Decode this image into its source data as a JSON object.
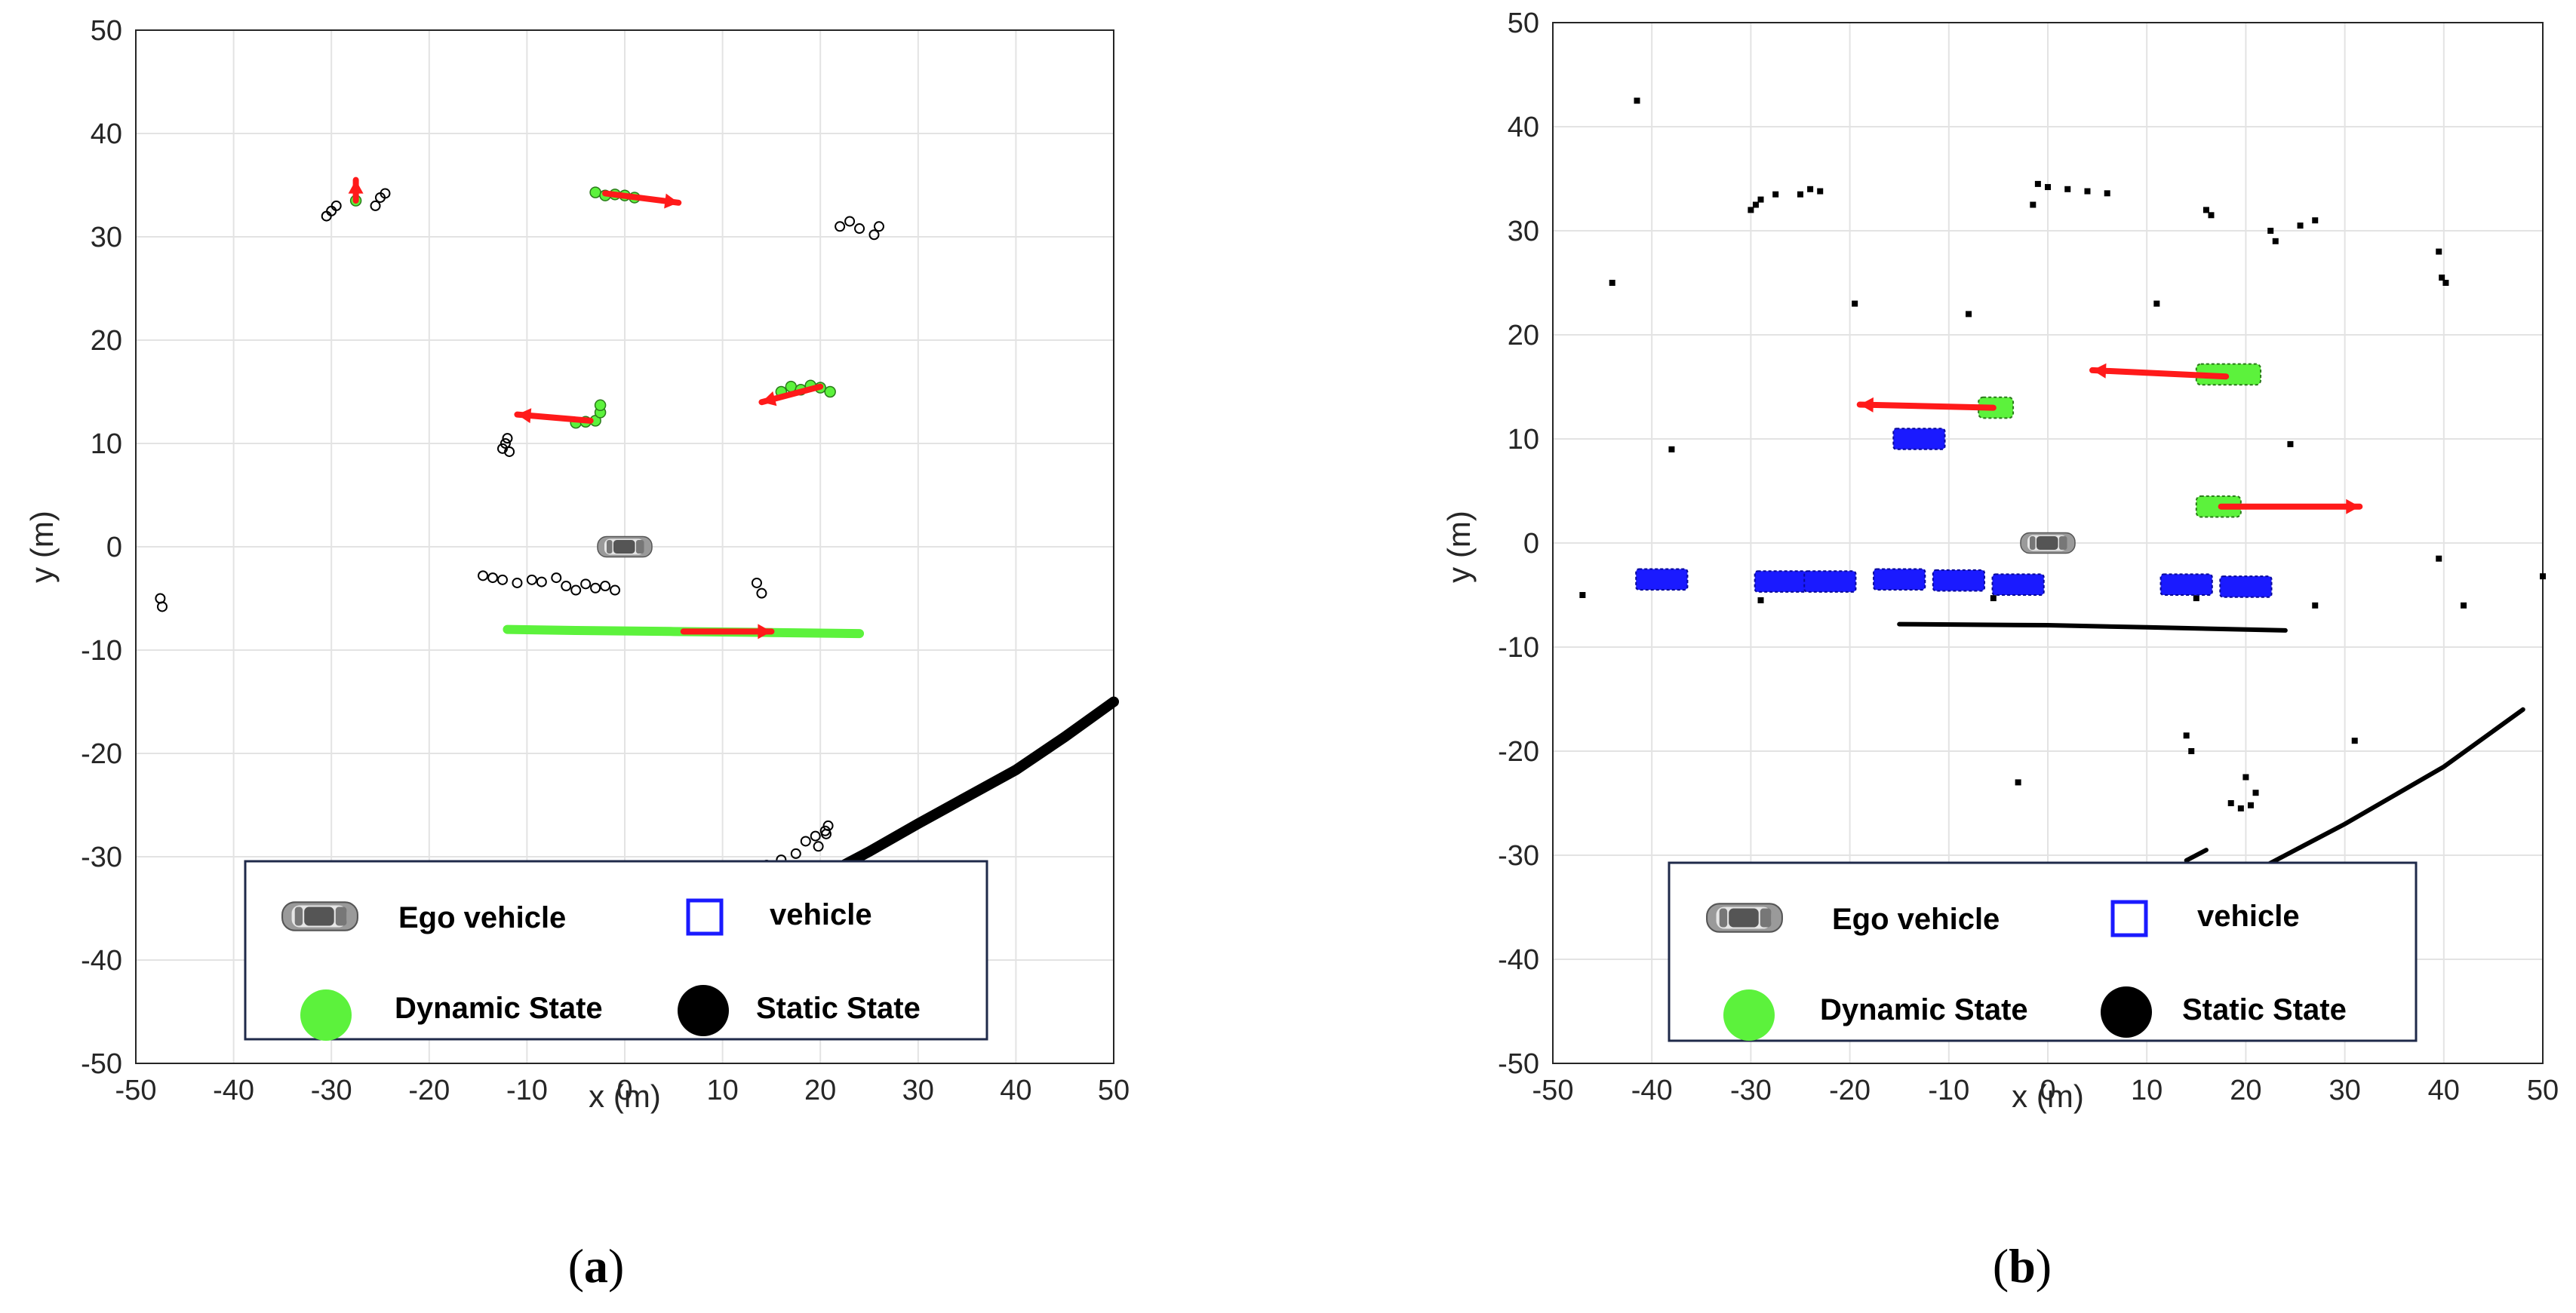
{
  "chart_data": [
    {
      "type": "scatter",
      "panel_label": "a",
      "xlabel": "x (m)",
      "ylabel": "y (m)",
      "xlim": [
        -50,
        50
      ],
      "ylim": [
        -50,
        50
      ],
      "xticks": [
        -50,
        -40,
        -30,
        -20,
        -10,
        0,
        10,
        20,
        30,
        40,
        50
      ],
      "yticks": [
        -50,
        -40,
        -30,
        -20,
        -10,
        0,
        10,
        20,
        30,
        40,
        50
      ],
      "grid": true,
      "ego_vehicle": [
        0,
        0
      ],
      "static_points": [
        [
          -30.5,
          32.0
        ],
        [
          -30.0,
          32.5
        ],
        [
          -29.5,
          33.0
        ],
        [
          -25.5,
          33.0
        ],
        [
          -25.0,
          33.8
        ],
        [
          -24.5,
          34.2
        ],
        [
          22.0,
          31.0
        ],
        [
          23.0,
          31.5
        ],
        [
          24.0,
          30.8
        ],
        [
          25.5,
          30.2
        ],
        [
          26.0,
          31.0
        ],
        [
          -12.5,
          9.5
        ],
        [
          -12.0,
          10.5
        ],
        [
          -11.8,
          9.2
        ],
        [
          -12.2,
          10.0
        ],
        [
          -14.5,
          -2.8
        ],
        [
          -13.5,
          -3.0
        ],
        [
          -12.5,
          -3.2
        ],
        [
          -11.0,
          -3.5
        ],
        [
          -9.5,
          -3.2
        ],
        [
          -8.5,
          -3.4
        ],
        [
          -7.0,
          -3.0
        ],
        [
          -6.0,
          -3.8
        ],
        [
          -5.0,
          -4.2
        ],
        [
          -4.0,
          -3.6
        ],
        [
          -3.0,
          -4.0
        ],
        [
          -2.0,
          -3.8
        ],
        [
          -1.0,
          -4.2
        ],
        [
          13.5,
          -3.5
        ],
        [
          14.0,
          -4.5
        ],
        [
          -47.5,
          -5.0
        ],
        [
          -47.3,
          -5.8
        ],
        [
          18.5,
          -28.5
        ],
        [
          19.5,
          -28.0
        ],
        [
          20.5,
          -27.5
        ],
        [
          19.8,
          -29.0
        ],
        [
          20.8,
          -27.0
        ],
        [
          20.6,
          -27.8
        ],
        [
          14.5,
          -30.8
        ],
        [
          16.0,
          -30.3
        ],
        [
          17.5,
          -29.7
        ]
      ],
      "static_line": [
        [
          20.0,
          -32.0
        ],
        [
          25.0,
          -29.5
        ],
        [
          30.0,
          -26.8
        ],
        [
          35.0,
          -24.2
        ],
        [
          40.0,
          -21.6
        ],
        [
          45.0,
          -18.4
        ],
        [
          50.0,
          -15.0
        ]
      ],
      "dynamic_points": [
        [
          -27.5,
          33.5
        ],
        [
          -3.0,
          34.3
        ],
        [
          -2.0,
          34.0
        ],
        [
          -1.0,
          34.1
        ],
        [
          0.0,
          34.0
        ],
        [
          1.0,
          33.8
        ],
        [
          -5.0,
          12.0
        ],
        [
          -4.0,
          12.1
        ],
        [
          -3.0,
          12.2
        ],
        [
          -2.5,
          13.0
        ],
        [
          -2.5,
          13.7
        ],
        [
          16.0,
          15.0
        ],
        [
          17.0,
          15.5
        ],
        [
          18.0,
          15.2
        ],
        [
          19.0,
          15.6
        ],
        [
          20.0,
          15.4
        ],
        [
          21.0,
          15.0
        ]
      ],
      "dynamic_line": [
        [
          -12.0,
          -8.0
        ],
        [
          -5.0,
          -8.1
        ],
        [
          5.0,
          -8.2
        ],
        [
          15.0,
          -8.3
        ],
        [
          24.0,
          -8.4
        ]
      ],
      "velocity_arrows": [
        {
          "from": [
            -27.5,
            33.5
          ],
          "to": [
            -27.5,
            35.5
          ]
        },
        {
          "from": [
            -2.0,
            34.2
          ],
          "to": [
            5.5,
            33.3
          ]
        },
        {
          "from": [
            -3.5,
            12.2
          ],
          "to": [
            -11.0,
            12.8
          ]
        },
        {
          "from": [
            20.0,
            15.5
          ],
          "to": [
            14.0,
            14.0
          ]
        },
        {
          "from": [
            6.0,
            -8.2
          ],
          "to": [
            15.0,
            -8.2
          ]
        }
      ],
      "tracked_vehicles": [],
      "legend": [
        "Ego vehicle",
        "vehicle",
        "Dynamic State",
        "Static State"
      ],
      "legend_position": "bottom"
    },
    {
      "type": "scatter",
      "panel_label": "b",
      "xlabel": "x (m)",
      "ylabel": "y (m)",
      "xlim": [
        -50,
        50
      ],
      "ylim": [
        -50,
        50
      ],
      "xticks": [
        -50,
        -40,
        -30,
        -20,
        -10,
        0,
        10,
        20,
        30,
        40,
        50
      ],
      "yticks": [
        -50,
        -40,
        -30,
        -20,
        -10,
        0,
        10,
        20,
        30,
        40,
        50
      ],
      "grid": true,
      "ego_vehicle": [
        0,
        0
      ],
      "static_points": [
        [
          -41.5,
          42.5
        ],
        [
          -44.0,
          25.0
        ],
        [
          -38.0,
          9.0
        ],
        [
          -47.0,
          -5.0
        ],
        [
          -30.0,
          32.0
        ],
        [
          -29.5,
          32.5
        ],
        [
          -29.0,
          33.0
        ],
        [
          -27.5,
          33.5
        ],
        [
          -25.0,
          33.5
        ],
        [
          -24.0,
          34.0
        ],
        [
          -23.0,
          33.8
        ],
        [
          -1.0,
          34.5
        ],
        [
          0.0,
          34.2
        ],
        [
          2.0,
          34.0
        ],
        [
          4.0,
          33.8
        ],
        [
          6.0,
          33.6
        ],
        [
          -1.5,
          32.5
        ],
        [
          -19.5,
          23.0
        ],
        [
          -8.0,
          22.0
        ],
        [
          11.0,
          23.0
        ],
        [
          16.0,
          32.0
        ],
        [
          16.5,
          31.5
        ],
        [
          22.5,
          30.0
        ],
        [
          23.0,
          29.0
        ],
        [
          25.5,
          30.5
        ],
        [
          27.0,
          31.0
        ],
        [
          39.5,
          28.0
        ],
        [
          39.8,
          25.5
        ],
        [
          40.2,
          25.0
        ],
        [
          24.5,
          9.5
        ],
        [
          39.5,
          -1.5
        ],
        [
          42.0,
          -6.0
        ],
        [
          27.0,
          -6.0
        ],
        [
          -29.0,
          -5.5
        ],
        [
          -5.5,
          -5.3
        ],
        [
          15.0,
          -5.3
        ],
        [
          50.0,
          -3.2
        ],
        [
          -3.0,
          -23.0
        ],
        [
          14.0,
          -18.5
        ],
        [
          14.5,
          -20.0
        ],
        [
          20.0,
          -22.5
        ],
        [
          21.0,
          -24.0
        ],
        [
          18.5,
          -25.0
        ],
        [
          19.5,
          -25.5
        ],
        [
          20.5,
          -25.2
        ],
        [
          31.0,
          -19.0
        ]
      ],
      "static_line": [
        [
          -15.0,
          -7.8
        ],
        [
          0.0,
          -7.9
        ],
        [
          10.0,
          -8.1
        ],
        [
          24.0,
          -8.4
        ]
      ],
      "static_line_2": [
        [
          14.0,
          -30.5
        ],
        [
          16.0,
          -29.5
        ]
      ],
      "static_line_3": [
        [
          21.0,
          -31.5
        ],
        [
          30.0,
          -27.0
        ],
        [
          40.0,
          -21.5
        ],
        [
          48.0,
          -16.0
        ]
      ],
      "dynamic_boxes": [
        [
          -7.0,
          12.0,
          -3.5,
          14.0
        ],
        [
          15.0,
          15.2,
          21.5,
          17.2
        ],
        [
          15.0,
          2.5,
          19.5,
          4.5
        ]
      ],
      "velocity_arrows": [
        {
          "from": [
            -5.5,
            13.0
          ],
          "to": [
            -19.0,
            13.3
          ]
        },
        {
          "from": [
            18.0,
            16.0
          ],
          "to": [
            4.5,
            16.6
          ]
        },
        {
          "from": [
            17.5,
            3.5
          ],
          "to": [
            31.5,
            3.5
          ]
        }
      ],
      "tracked_vehicles": [
        [
          -13.0,
          10.0
        ],
        [
          -39.0,
          -3.5
        ],
        [
          -27.0,
          -3.7
        ],
        [
          -22.0,
          -3.7
        ],
        [
          -15.0,
          -3.5
        ],
        [
          -9.0,
          -3.6
        ],
        [
          -3.0,
          -4.0
        ],
        [
          14.0,
          -4.0
        ],
        [
          20.0,
          -4.2
        ]
      ],
      "legend": [
        "Ego vehicle",
        "vehicle",
        "Dynamic State",
        "Static State"
      ],
      "legend_position": "bottom"
    }
  ],
  "captions": [
    {
      "open": "(",
      "letter": "a",
      "close": ")"
    },
    {
      "open": "(",
      "letter": "b",
      "close": ")"
    }
  ],
  "legend": {
    "ego": "Ego vehicle",
    "vehicle": "vehicle",
    "dynamic": "Dynamic State",
    "static": "Static State"
  },
  "colors": {
    "dynamic": "#5cf23c",
    "static": "#000000",
    "arrow": "#ff1a1a",
    "vehicle": "#1a1aff",
    "grid": "#e3e3e3",
    "axis": "#262626",
    "legend_border": "#1f2a4a"
  }
}
